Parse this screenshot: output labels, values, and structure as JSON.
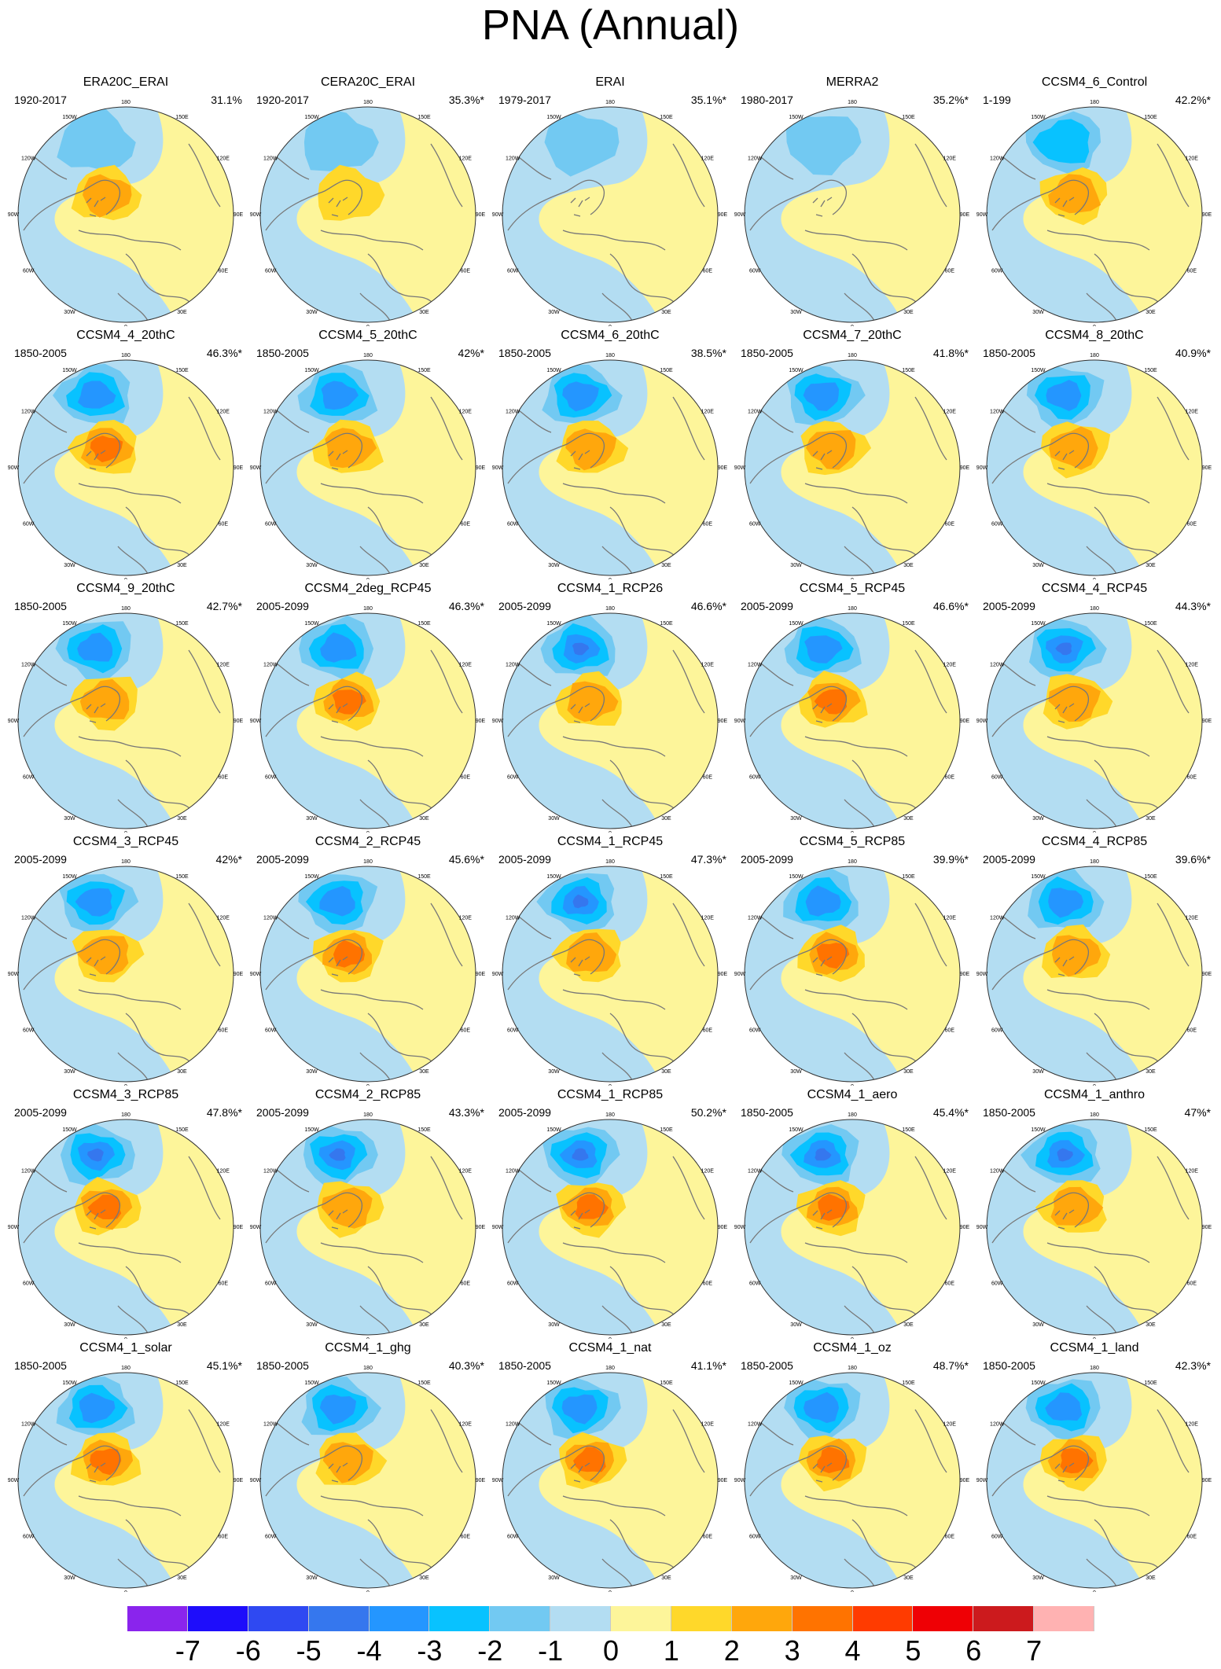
{
  "figure_title": "PNA (Annual)",
  "chart_data": {
    "type": "heatmap",
    "title": "PNA (Annual)",
    "map_projection": "north-polar-stereographic",
    "longitude_labels": [
      "180",
      "150E",
      "120E",
      "90E",
      "60E",
      "30E",
      "0",
      "30W",
      "60W",
      "90W",
      "120W",
      "150W"
    ],
    "colorbar": {
      "tick_labels": [
        "-7",
        "-6",
        "-5",
        "-4",
        "-3",
        "-2",
        "-1",
        "0",
        "1",
        "2",
        "3",
        "4",
        "5",
        "6",
        "7"
      ],
      "colors": [
        "#8a24ed",
        "#1e0dfb",
        "#2f49f2",
        "#3577ee",
        "#2496ff",
        "#08c2ff",
        "#72c9f2",
        "#b3ddf2",
        "#fdf59a",
        "#ffd82a",
        "#ffa70c",
        "#ff7300",
        "#ff3b00",
        "#ef0005",
        "#cc1a1d",
        "#ffb2b2"
      ]
    },
    "panels": [
      {
        "name": "ERA20C_ERAI",
        "years": "1920-2017",
        "pct": "31.1%",
        "neg": 1.5,
        "pos": 2.2
      },
      {
        "name": "CERA20C_ERAI",
        "years": "1920-2017",
        "pct": "35.3%*",
        "neg": 1.3,
        "pos": 1.4
      },
      {
        "name": "ERAI",
        "years": "1979-2017",
        "pct": "35.1%*",
        "neg": 1.5,
        "pos": 0.8
      },
      {
        "name": "MERRA2",
        "years": "1980-2017",
        "pct": "35.2%*",
        "neg": 1.5,
        "pos": 0.8
      },
      {
        "name": "CCSM4_6_Control",
        "years": "1-199",
        "pct": "42.2%*",
        "neg": 2.2,
        "pos": 2.2
      },
      {
        "name": "CCSM4_4_20thC",
        "years": "1850-2005",
        "pct": "46.3%*",
        "neg": 3.2,
        "pos": 3.3
      },
      {
        "name": "CCSM4_5_20thC",
        "years": "1850-2005",
        "pct": "42%*",
        "neg": 3.1,
        "pos": 2.4
      },
      {
        "name": "CCSM4_6_20thC",
        "years": "1850-2005",
        "pct": "38.5%*",
        "neg": 3.1,
        "pos": 2.4
      },
      {
        "name": "CCSM4_7_20thC",
        "years": "1850-2005",
        "pct": "41.8%*",
        "neg": 3.1,
        "pos": 2.3
      },
      {
        "name": "CCSM4_8_20thC",
        "years": "1850-2005",
        "pct": "40.9%*",
        "neg": 3.1,
        "pos": 2.3
      },
      {
        "name": "CCSM4_9_20thC",
        "years": "1850-2005",
        "pct": "42.7%*",
        "neg": 3.1,
        "pos": 2.4
      },
      {
        "name": "CCSM4_2deg_RCP45",
        "years": "2005-2099",
        "pct": "46.3%*",
        "neg": 3.1,
        "pos": 3.1
      },
      {
        "name": "CCSM4_1_RCP26",
        "years": "2005-2099",
        "pct": "46.6%*",
        "neg": 4.2,
        "pos": 2.4
      },
      {
        "name": "CCSM4_5_RCP45",
        "years": "2005-2099",
        "pct": "46.6%*",
        "neg": 3.2,
        "pos": 3.1
      },
      {
        "name": "CCSM4_4_RCP45",
        "years": "2005-2099",
        "pct": "44.3%*",
        "neg": 4.2,
        "pos": 2.4
      },
      {
        "name": "CCSM4_3_RCP45",
        "years": "2005-2099",
        "pct": "42%*",
        "neg": 3.1,
        "pos": 2.3
      },
      {
        "name": "CCSM4_2_RCP45",
        "years": "2005-2099",
        "pct": "45.6%*",
        "neg": 3.1,
        "pos": 3.1
      },
      {
        "name": "CCSM4_1_RCP45",
        "years": "2005-2099",
        "pct": "47.3%*",
        "neg": 4.1,
        "pos": 2.4
      },
      {
        "name": "CCSM4_5_RCP85",
        "years": "2005-2099",
        "pct": "39.9%*",
        "neg": 3.1,
        "pos": 3.1
      },
      {
        "name": "CCSM4_4_RCP85",
        "years": "2005-2099",
        "pct": "39.6%*",
        "neg": 3.1,
        "pos": 2.3
      },
      {
        "name": "CCSM4_3_RCP85",
        "years": "2005-2099",
        "pct": "47.8%*",
        "neg": 4.1,
        "pos": 3.2
      },
      {
        "name": "CCSM4_2_RCP85",
        "years": "2005-2099",
        "pct": "43.3%*",
        "neg": 4.1,
        "pos": 2.3
      },
      {
        "name": "CCSM4_1_RCP85",
        "years": "2005-2099",
        "pct": "50.2%*",
        "neg": 4.2,
        "pos": 3.2
      },
      {
        "name": "CCSM4_1_aero",
        "years": "1850-2005",
        "pct": "45.4%*",
        "neg": 4.1,
        "pos": 3.1
      },
      {
        "name": "CCSM4_1_anthro",
        "years": "1850-2005",
        "pct": "47%*",
        "neg": 4.1,
        "pos": 2.4
      },
      {
        "name": "CCSM4_1_solar",
        "years": "1850-2005",
        "pct": "45.1%*",
        "neg": 3.2,
        "pos": 3.1
      },
      {
        "name": "CCSM4_1_ghg",
        "years": "1850-2005",
        "pct": "40.3%*",
        "neg": 3.1,
        "pos": 2.3
      },
      {
        "name": "CCSM4_1_nat",
        "years": "1850-2005",
        "pct": "41.1%*",
        "neg": 3.1,
        "pos": 3.1
      },
      {
        "name": "CCSM4_1_oz",
        "years": "1850-2005",
        "pct": "48.7%*",
        "neg": 3.2,
        "pos": 3.1
      },
      {
        "name": "CCSM4_1_land",
        "years": "1850-2005",
        "pct": "42.3%*",
        "neg": 3.1,
        "pos": 3.2
      }
    ]
  }
}
